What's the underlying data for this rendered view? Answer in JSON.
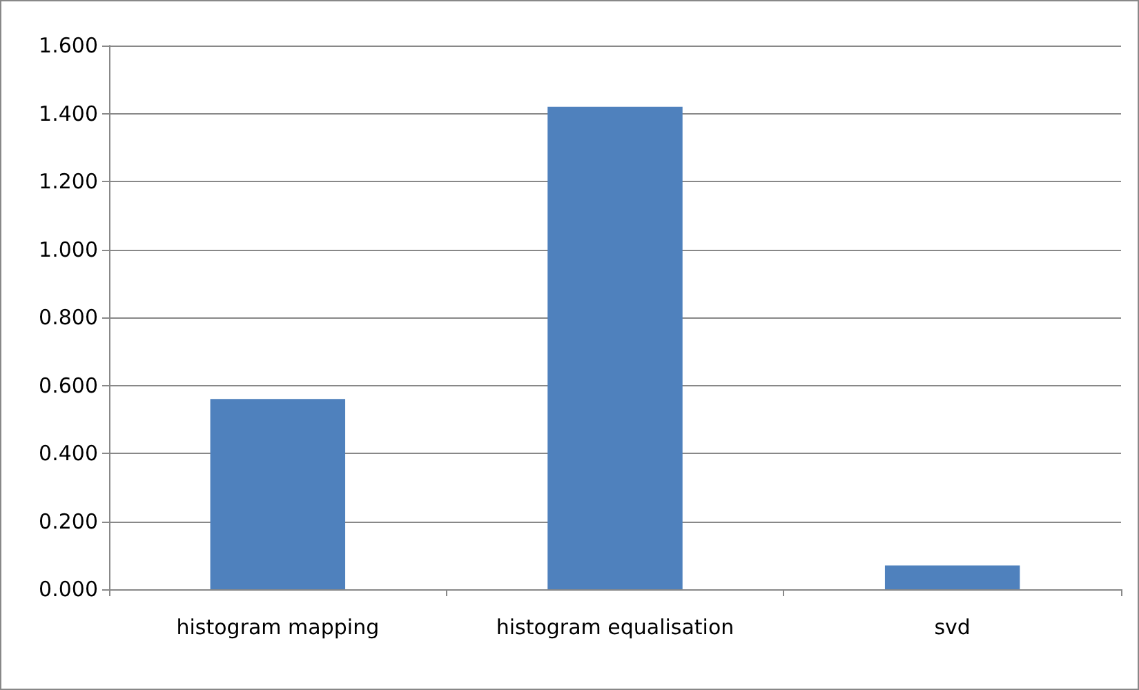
{
  "chart_data": {
    "type": "bar",
    "categories": [
      "histogram mapping",
      "histogram equalisation",
      "svd"
    ],
    "values": [
      0.56,
      1.42,
      0.07
    ],
    "color": "#4f81bd",
    "ylim": [
      0,
      1.6
    ],
    "yticks": [
      {
        "value": 0,
        "label": "0.000"
      },
      {
        "value": 0.2,
        "label": "0.200"
      },
      {
        "value": 0.4,
        "label": "0.400"
      },
      {
        "value": 0.6,
        "label": "0.600"
      },
      {
        "value": 0.8,
        "label": "0.800"
      },
      {
        "value": 1.0,
        "label": "1.000"
      },
      {
        "value": 1.2,
        "label": "1.200"
      },
      {
        "value": 1.4,
        "label": "1.400"
      },
      {
        "value": 1.6,
        "label": "1.600"
      }
    ],
    "grid": "y"
  }
}
